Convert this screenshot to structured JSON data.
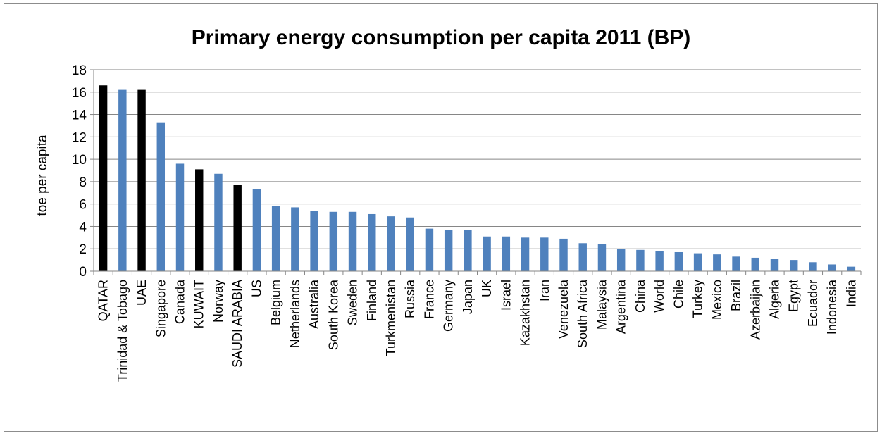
{
  "chart_data": {
    "type": "bar",
    "title": "Primary energy consumption per capita 2011 (BP)",
    "ylabel": "toe per capita",
    "xlabel": "",
    "ylim": [
      0,
      18
    ],
    "yticks": [
      0,
      2,
      4,
      6,
      8,
      10,
      12,
      14,
      16,
      18
    ],
    "grid": true,
    "legend": "none",
    "colors": {
      "default": "#4f81bd",
      "highlight": "#000000"
    },
    "categories": [
      "QATAR",
      "Trinidad & Tobago",
      "UAE",
      "Singapore",
      "Canada",
      "KUWAIT",
      "Norway",
      "SAUDI ARABIA",
      "US",
      "Belgium",
      "Netherlands",
      "Australia",
      "South Korea",
      "Sweden",
      "Finland",
      "Turkmenistan",
      "Russia",
      "France",
      "Germany",
      "Japan",
      "UK",
      "Israel",
      "Kazakhstan",
      "Iran",
      "Venezuela",
      "South Africa",
      "Malaysia",
      "Argentina",
      "China",
      "World",
      "Chile",
      "Turkey",
      "Mexico",
      "Brazil",
      "Azerbaijan",
      "Algeria",
      "Egypt",
      "Ecuador",
      "Indonesia",
      "India"
    ],
    "values": [
      16.6,
      16.2,
      16.2,
      13.3,
      9.6,
      9.1,
      8.7,
      7.7,
      7.3,
      5.8,
      5.7,
      5.4,
      5.3,
      5.3,
      5.1,
      4.9,
      4.8,
      3.8,
      3.7,
      3.7,
      3.1,
      3.1,
      3.0,
      3.0,
      2.9,
      2.5,
      2.4,
      2.0,
      1.9,
      1.8,
      1.7,
      1.6,
      1.5,
      1.3,
      1.2,
      1.1,
      1.0,
      0.8,
      0.6,
      0.4
    ],
    "highlighted": [
      "QATAR",
      "UAE",
      "KUWAIT",
      "SAUDI ARABIA"
    ]
  }
}
